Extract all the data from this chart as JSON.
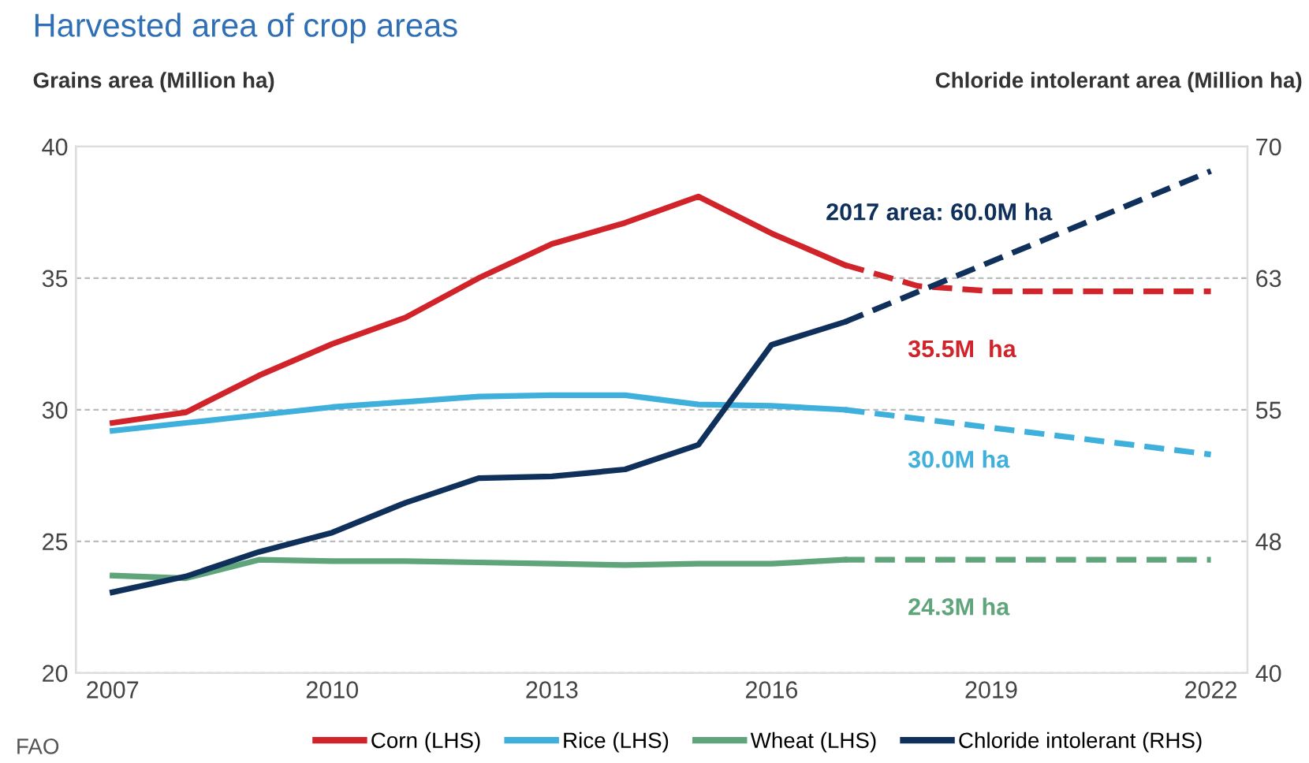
{
  "chart_data": {
    "type": "line",
    "title": "Harvested area of crop areas",
    "ylabel": "Grains area (Million ha)",
    "y2label": "Chloride intolerant area (Million ha)",
    "xlim": [
      2006.5,
      2022.5
    ],
    "xticks": [
      2007,
      2010,
      2013,
      2016,
      2019,
      2022
    ],
    "ylim": [
      20,
      40
    ],
    "yticks": [
      20,
      25,
      30,
      35,
      40
    ],
    "y2lim": [
      40,
      70
    ],
    "y2ticks": [
      40,
      {
        "value": 47.5,
        "label": "48"
      },
      55,
      {
        "value": 62.5,
        "label": "63"
      },
      70
    ],
    "grid": "y",
    "legend": "bottom",
    "line_style": "solid",
    "marker": "none",
    "series": [
      {
        "name": "Corn (LHS)",
        "color": "#d0232a",
        "x": [
          2007,
          2008,
          2009,
          2010,
          2011,
          2012,
          2013,
          2014,
          2015,
          2016,
          2017
        ],
        "values": [
          29.5,
          29.9,
          31.3,
          32.5,
          33.5,
          35.0,
          36.3,
          37.1,
          38.1,
          36.7,
          35.5
        ]
      },
      {
        "color": "#d0232a",
        "line_style": "dashed",
        "x": [
          2017,
          2018,
          2019,
          2020,
          2021,
          2022
        ],
        "values": [
          35.5,
          34.7,
          34.5,
          34.5,
          34.5,
          34.5
        ]
      },
      {
        "name": "Rice (LHS)",
        "color": "#3fb0dc",
        "x": [
          2007,
          2008,
          2009,
          2010,
          2011,
          2012,
          2013,
          2014,
          2015,
          2016,
          2017
        ],
        "values": [
          29.2,
          29.5,
          29.8,
          30.1,
          30.3,
          30.5,
          30.55,
          30.55,
          30.2,
          30.15,
          30.0
        ]
      },
      {
        "color": "#3fb0dc",
        "line_style": "dashed",
        "x": [
          2017,
          2022
        ],
        "values": [
          30.0,
          28.3
        ]
      },
      {
        "name": "Wheat (LHS)",
        "color": "#5fa47a",
        "x": [
          2007,
          2008,
          2009,
          2010,
          2011,
          2012,
          2013,
          2014,
          2015,
          2016,
          2017
        ],
        "values": [
          23.7,
          23.6,
          24.3,
          24.25,
          24.25,
          24.2,
          24.15,
          24.1,
          24.15,
          24.15,
          24.3
        ]
      },
      {
        "color": "#5fa47a",
        "line_style": "dashed",
        "x": [
          2017,
          2022
        ],
        "values": [
          24.3,
          24.3
        ]
      },
      {
        "name": "Chloride intolerant (RHS)",
        "color": "#10305c",
        "axis": "y2",
        "x": [
          2007,
          2008,
          2009,
          2010,
          2011,
          2012,
          2013,
          2014,
          2015,
          2016,
          2017
        ],
        "values": [
          44.6,
          45.5,
          46.9,
          48.0,
          49.7,
          51.1,
          51.2,
          51.6,
          53.0,
          58.7,
          60.0
        ]
      },
      {
        "color": "#10305c",
        "line_style": "dashed",
        "axis": "y2",
        "x": [
          2017,
          2022
        ],
        "values": [
          60.0,
          68.6
        ]
      }
    ],
    "annotations": [
      "2017 area: 60.0M ha",
      "35.5M  ha",
      "30.0M ha",
      "24.3M ha",
      "FAO"
    ]
  }
}
